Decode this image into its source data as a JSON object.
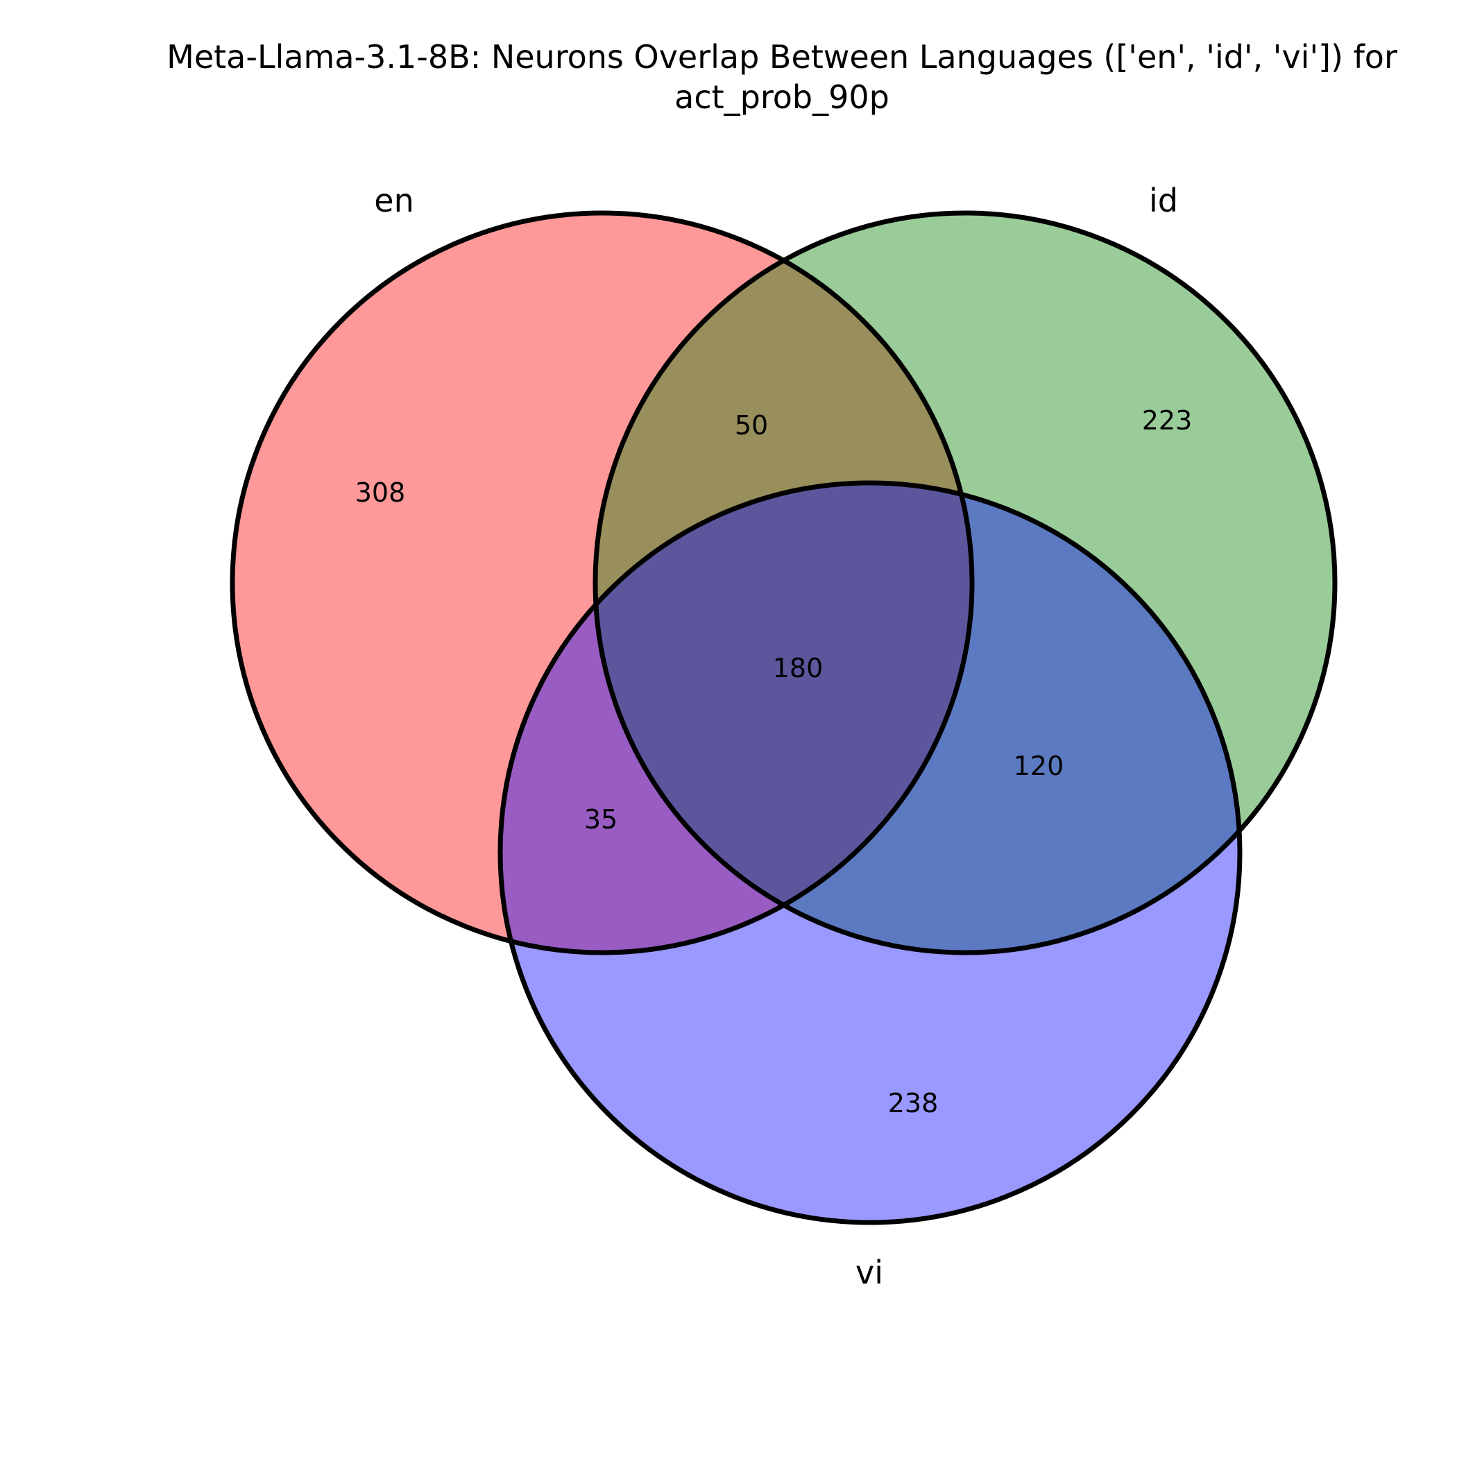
{
  "title": {
    "line1": "Meta-Llama-3.1-8B: Neurons Overlap Between Languages (['en', 'id', 'vi']) for",
    "line2": "act_prob_90p"
  },
  "chart_data": {
    "type": "venn3",
    "sets": [
      {
        "name": "en",
        "color": "#ff0000"
      },
      {
        "name": "id",
        "color": "#008000"
      },
      {
        "name": "vi",
        "color": "#0000ff"
      }
    ],
    "regions": {
      "en_only": 308,
      "id_only": 223,
      "vi_only": 238,
      "en_id": 50,
      "en_vi": 35,
      "id_vi": 120,
      "en_id_vi": 180
    },
    "region_labels": {
      "en_only": "308",
      "id_only": "223",
      "vi_only": "238",
      "en_id": "50",
      "en_vi": "35",
      "id_vi": "120",
      "en_id_vi": "180"
    },
    "fill_opacity": 0.4
  }
}
